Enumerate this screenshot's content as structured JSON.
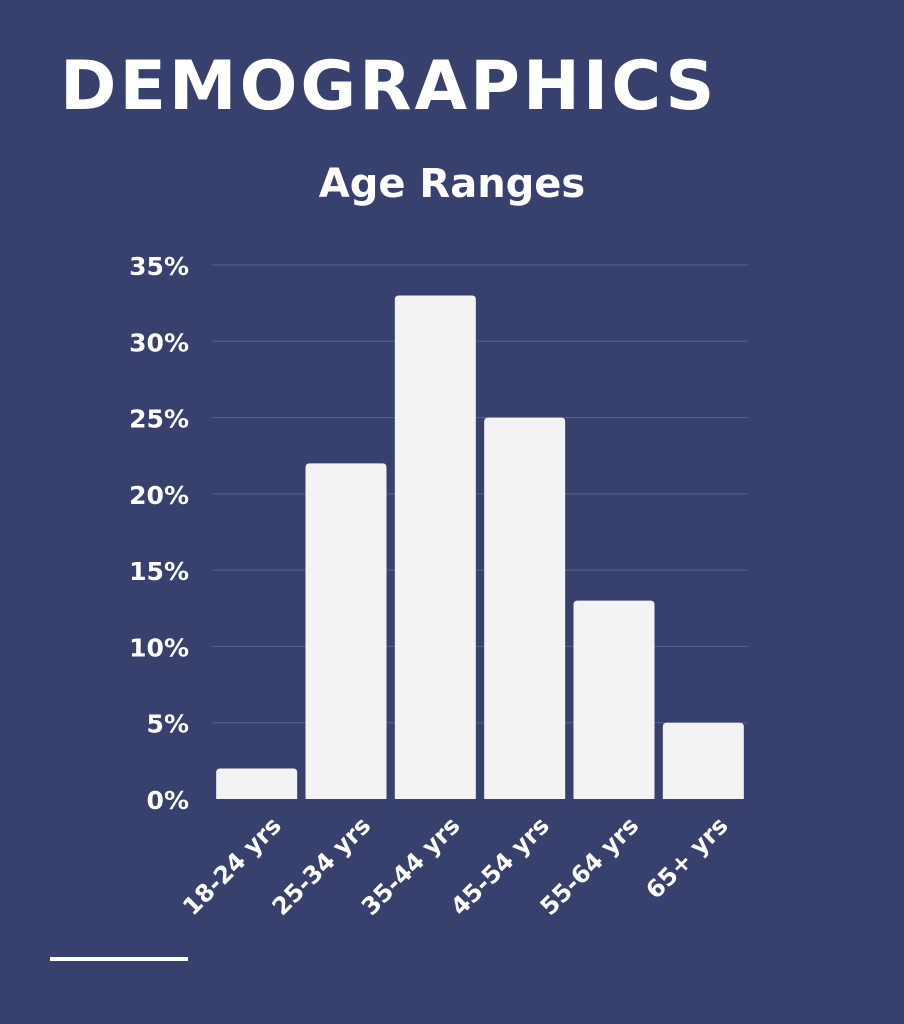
{
  "page": {
    "heading": "DEMOGRAPHICS",
    "background_color": "#38406e",
    "bar_color": "#f3f3f4",
    "text_color": "#ffffff"
  },
  "chart_data": {
    "type": "bar",
    "title": "Age Ranges",
    "categories": [
      "18-24 yrs",
      "25-34 yrs",
      "35-44 yrs",
      "45-54 yrs",
      "55-64 yrs",
      "65+ yrs"
    ],
    "values": [
      2,
      22,
      33,
      25,
      13,
      5
    ],
    "unit": "%",
    "ylim": [
      0,
      35
    ],
    "y_ticks": [
      "0%",
      "5%",
      "10%",
      "15%",
      "20%",
      "25%",
      "30%",
      "35%"
    ],
    "xlabel": "",
    "ylabel": "",
    "grid": true,
    "legend": false
  }
}
